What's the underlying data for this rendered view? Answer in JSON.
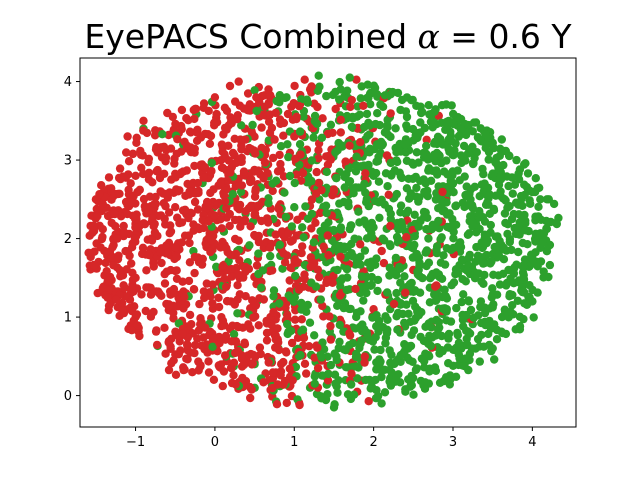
{
  "chart_data": {
    "type": "scatter",
    "title": "EyePACS Combined α = 0.6 Y",
    "title_parts": {
      "prefix": "EyePACS Combined ",
      "symbol": "α",
      "equals": " = ",
      "value": "0.6",
      "suffix": " Y"
    },
    "xlabel": "",
    "ylabel": "",
    "xlim": [
      -1.7,
      4.55
    ],
    "ylim": [
      -0.4,
      4.3
    ],
    "x_ticks": [
      -1,
      0,
      1,
      2,
      3,
      4
    ],
    "x_tick_labels": [
      "−1",
      "0",
      "1",
      "2",
      "3",
      "4"
    ],
    "y_ticks": [
      0,
      1,
      2,
      3,
      4
    ],
    "y_tick_labels": [
      "0",
      "1",
      "2",
      "3",
      "4"
    ],
    "grid": false,
    "legend": "none",
    "series": [
      {
        "color": "#d62728",
        "points_approx": 1300,
        "cluster": {
          "center_x": 0.2,
          "center_y": 2.2,
          "x_range": [
            -1.55,
            2.7
          ],
          "y_range": [
            0.3,
            4.05
          ]
        },
        "points": [
          [
            -1.5,
            2.5
          ],
          [
            -1.4,
            2.6
          ],
          [
            -1.3,
            2.2
          ],
          [
            -1.2,
            1.6
          ],
          [
            -1.1,
            3.3
          ],
          [
            -1.0,
            2.8
          ],
          [
            -1.0,
            1.5
          ],
          [
            -0.9,
            3.5
          ],
          [
            -0.8,
            2.0
          ],
          [
            -0.7,
            1.3
          ],
          [
            -0.6,
            3.6
          ],
          [
            -0.5,
            2.4
          ],
          [
            -0.4,
            0.9
          ],
          [
            -0.3,
            3.1
          ],
          [
            -0.2,
            1.7
          ],
          [
            -0.1,
            0.65
          ],
          [
            0.0,
            3.8
          ],
          [
            0.1,
            2.9
          ],
          [
            0.2,
            1.2
          ],
          [
            0.3,
            4.0
          ],
          [
            0.4,
            0.45
          ],
          [
            0.5,
            2.3
          ],
          [
            0.6,
            3.6
          ],
          [
            0.7,
            1.0
          ],
          [
            0.8,
            2.7
          ],
          [
            0.9,
            0.55
          ],
          [
            1.0,
            3.3
          ],
          [
            1.1,
            1.9
          ],
          [
            1.2,
            3.9
          ],
          [
            1.3,
            0.35
          ],
          [
            1.5,
            2.6
          ],
          [
            1.8,
            3.4
          ],
          [
            2.0,
            1.1
          ],
          [
            2.2,
            3.0
          ],
          [
            2.5,
            1.6
          ],
          [
            2.7,
            2.1
          ]
        ]
      },
      {
        "color": "#2ca02c",
        "points_approx": 1300,
        "cluster": {
          "center_x": 2.5,
          "center_y": 1.8,
          "x_range": [
            -1.0,
            4.4
          ],
          "y_range": [
            -0.2,
            4.1
          ]
        },
        "points": [
          [
            -0.9,
            3.4
          ],
          [
            -0.4,
            3.2
          ],
          [
            0.1,
            1.4
          ],
          [
            0.5,
            0.4
          ],
          [
            0.8,
            0.6
          ],
          [
            1.0,
            2.4
          ],
          [
            1.2,
            0.1
          ],
          [
            1.4,
            -0.05
          ],
          [
            1.5,
            -0.15
          ],
          [
            1.6,
            1.3
          ],
          [
            1.7,
            4.05
          ],
          [
            1.9,
            0.2
          ],
          [
            2.0,
            2.8
          ],
          [
            2.1,
            -0.1
          ],
          [
            2.3,
            2.2
          ],
          [
            2.4,
            0.05
          ],
          [
            2.6,
            3.6
          ],
          [
            2.7,
            0.5
          ],
          [
            2.8,
            1.9
          ],
          [
            3.0,
            2.7
          ],
          [
            3.1,
            0.4
          ],
          [
            3.2,
            1.2
          ],
          [
            3.3,
            3.1
          ],
          [
            3.4,
            2.0
          ],
          [
            3.5,
            0.6
          ],
          [
            3.6,
            2.6
          ],
          [
            3.7,
            1.6
          ],
          [
            3.8,
            3.0
          ],
          [
            3.9,
            2.3
          ],
          [
            4.0,
            1.2
          ],
          [
            4.1,
            2.5
          ],
          [
            4.2,
            1.9
          ],
          [
            4.3,
            2.2
          ]
        ]
      }
    ]
  }
}
